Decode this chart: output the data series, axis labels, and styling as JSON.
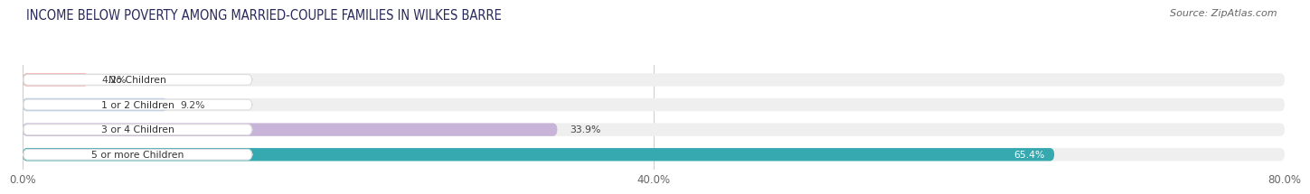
{
  "title": "INCOME BELOW POVERTY AMONG MARRIED-COUPLE FAMILIES IN WILKES BARRE",
  "source": "Source: ZipAtlas.com",
  "categories": [
    "No Children",
    "1 or 2 Children",
    "3 or 4 Children",
    "5 or more Children"
  ],
  "values": [
    4.2,
    9.2,
    33.9,
    65.4
  ],
  "bar_colors": [
    "#f2aaaa",
    "#aec8ea",
    "#c8b4d8",
    "#35a8b0"
  ],
  "value_label_colors": [
    "#444444",
    "#444444",
    "#444444",
    "#ffffff"
  ],
  "bar_bg_color": "#efefef",
  "xlim": [
    0,
    80
  ],
  "xtick_vals": [
    0.0,
    40.0,
    80.0
  ],
  "xtick_labels": [
    "0.0%",
    "40.0%",
    "80.0%"
  ],
  "title_fontsize": 10.5,
  "source_fontsize": 8,
  "bar_height": 0.52,
  "bar_gap": 1.0,
  "background_color": "#ffffff",
  "pill_color": "#ffffff",
  "pill_edge_color": "#dddddd"
}
